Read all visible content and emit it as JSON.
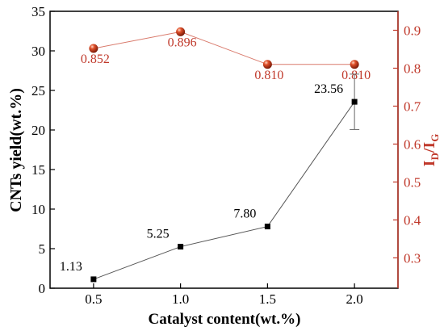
{
  "chart_data": {
    "type": "line",
    "x": [
      0.5,
      1.0,
      1.5,
      2.0
    ],
    "x_ticks": [
      "0.5",
      "1.0",
      "1.5",
      "2.0"
    ],
    "xlim": [
      0.25,
      2.25
    ],
    "xlabel": "Catalyst content(wt.%)",
    "grid": false,
    "axes": {
      "left": {
        "label": "CNTs yield(wt.%)",
        "ylim": [
          0,
          35
        ],
        "ticks": [
          "0",
          "5",
          "10",
          "15",
          "20",
          "25",
          "30",
          "35"
        ],
        "color": "#000000"
      },
      "right": {
        "label_main": "I",
        "label_sub1": "D",
        "label_mid": "/I",
        "label_sub2": "G",
        "ylim": [
          0.22,
          0.95
        ],
        "ticks": [
          "0.3",
          "0.4",
          "0.5",
          "0.6",
          "0.7",
          "0.8",
          "0.9"
        ],
        "color": "#c0392b"
      }
    },
    "series": [
      {
        "axis": "left",
        "values": [
          1.13,
          5.25,
          7.8,
          23.56
        ],
        "labels": [
          "1.13",
          "5.25",
          "7.80",
          "23.56"
        ],
        "error": [
          0,
          0,
          0,
          3.5
        ],
        "color": "#000000",
        "marker": "square"
      },
      {
        "axis": "right",
        "values": [
          0.852,
          0.896,
          0.81,
          0.81
        ],
        "labels": [
          "0.852",
          "0.896",
          "0.810",
          "0.810"
        ],
        "color": "#c0392b",
        "marker": "sphere"
      }
    ]
  }
}
